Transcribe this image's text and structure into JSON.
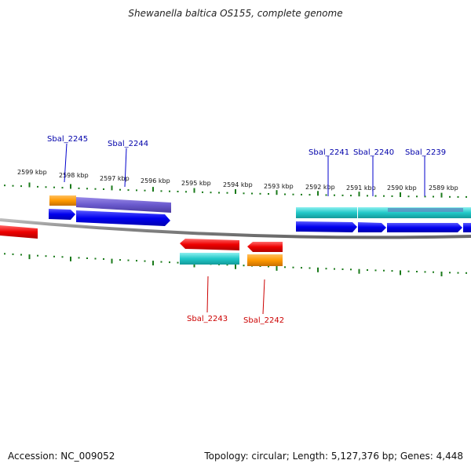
{
  "title": "Shewanella baltica OS155, complete genome",
  "footer": {
    "accession": "Accession: NC_009052",
    "summary": "Topology: circular; Length: 5,127,376 bp; Genes: 4,448"
  },
  "scale_labels": [
    "2599 kbp",
    "2598 kbp",
    "2597 kbp",
    "2596 kbp",
    "2595 kbp",
    "2594 kbp",
    "2593 kbp",
    "2592 kbp",
    "2591 kbp",
    "2590 kbp",
    "2589 kbp"
  ],
  "genes_top": [
    "Sbal_2245",
    "Sbal_2244",
    "Sbal_2241",
    "Sbal_2240",
    "Sbal_2239"
  ],
  "genes_bottom": [
    "Sbal_2243",
    "Sbal_2242"
  ],
  "colors": {
    "forward_strand": "#0000ee",
    "reverse_strand": "#ee0000",
    "orange": "#ff9900",
    "purple": "#6a5acd",
    "cyan": "#20c8c8",
    "tick": "#1a7a1a",
    "backbone": "#888888"
  }
}
